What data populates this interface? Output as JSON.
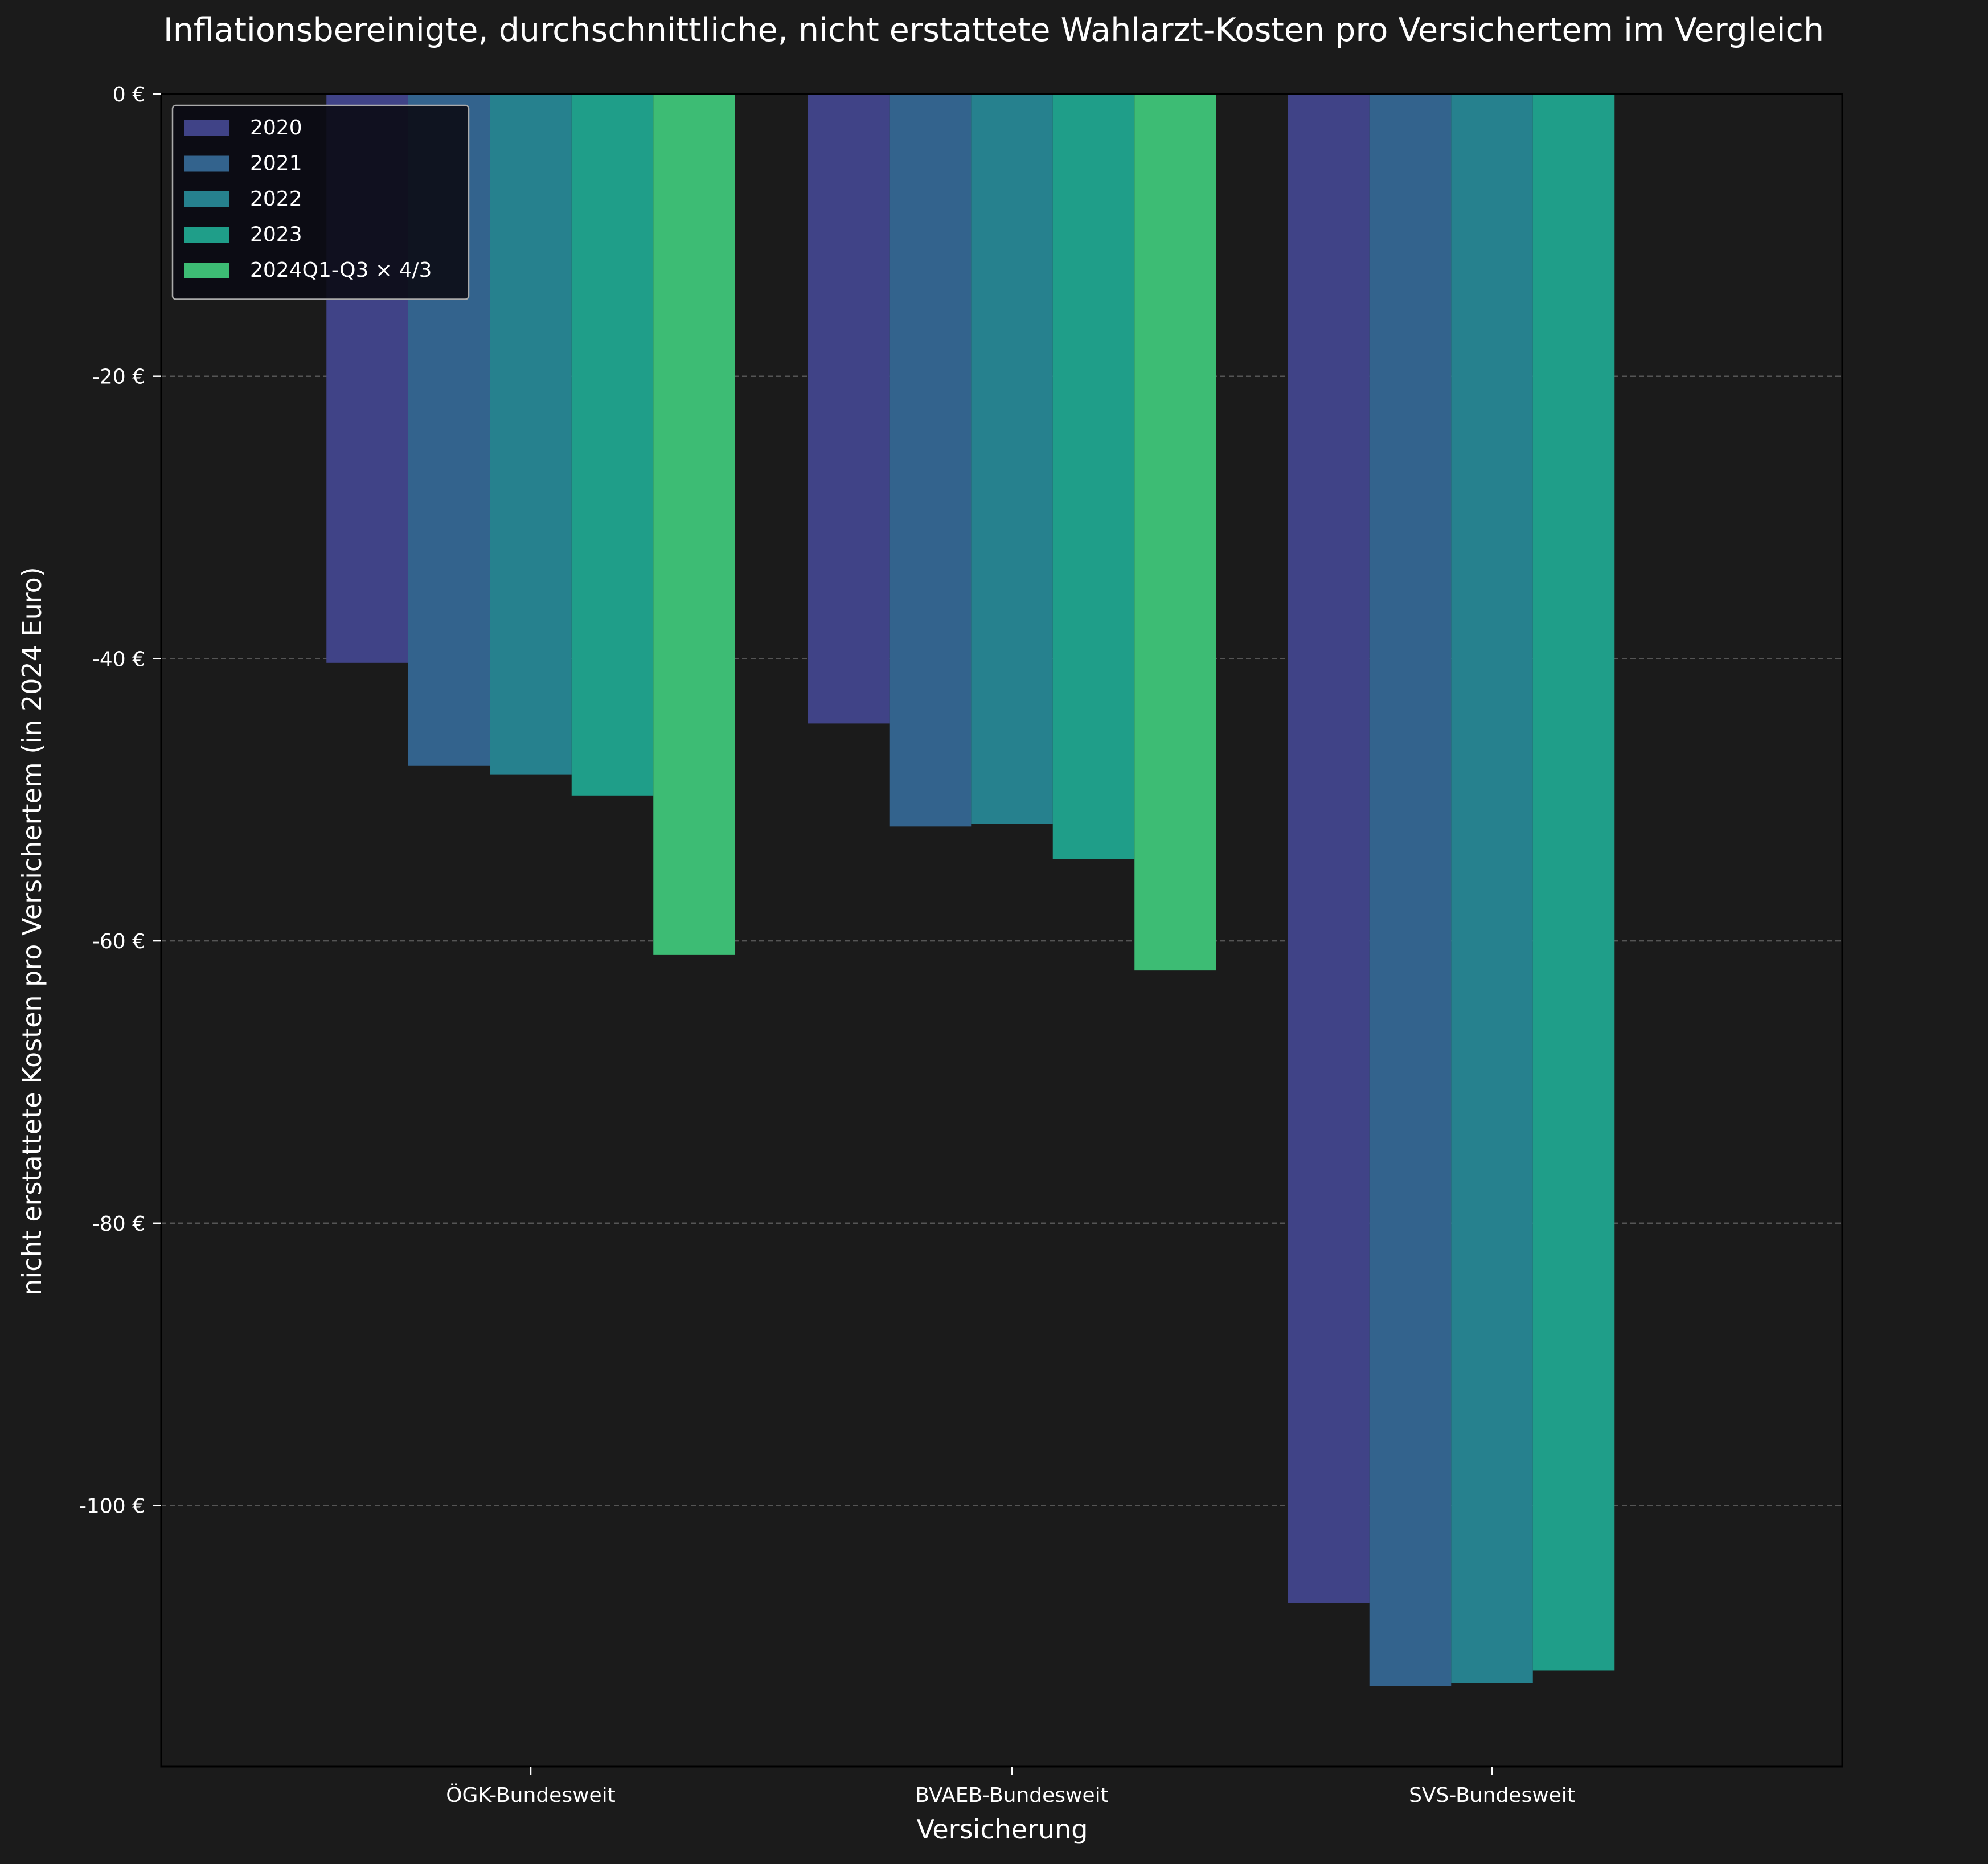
{
  "chart_data": {
    "type": "bar",
    "title": "Inflationsbereinigte, durchschnittliche, nicht erstattete Wahlarzt-Kosten pro Versichertem im Vergleich",
    "xlabel": "Versicherung",
    "ylabel": "nicht erstattete Kosten pro Versichertem (in 2024 Euro)",
    "categories": [
      "ÖGK-Bundesweit",
      "BVAEB-Bundesweit",
      "SVS-Bundesweit"
    ],
    "ylim": [
      -118.5,
      0
    ],
    "yticks": [
      0,
      -20,
      -40,
      -60,
      -80,
      -100
    ],
    "ytick_labels": [
      "0 €",
      "-20 €",
      "-40 €",
      "-60 €",
      "-80 €",
      "-100 €"
    ],
    "grid": "horizontal dashed",
    "legend_position": "top-left",
    "series": [
      {
        "name": "2020",
        "color": "#404387",
        "values": [
          -40.3,
          -44.6,
          -106.9
        ]
      },
      {
        "name": "2021",
        "color": "#33638d",
        "values": [
          -47.6,
          -51.9,
          -112.8
        ]
      },
      {
        "name": "2022",
        "color": "#26818e",
        "values": [
          -48.2,
          -51.7,
          -112.6
        ]
      },
      {
        "name": "2023",
        "color": "#1f9e89",
        "values": [
          -49.7,
          -54.2,
          -111.7
        ]
      },
      {
        "name": "2024Q1-Q3 × 4/3",
        "color": "#3dbc74",
        "values": [
          -61.0,
          -62.1,
          null
        ]
      }
    ],
    "colors": {
      "background": "#1b1b1b",
      "text": "#ffffff",
      "grid": "#555555",
      "legend_background": "#0b0b14",
      "legend_border": "#aaaaaa"
    }
  }
}
